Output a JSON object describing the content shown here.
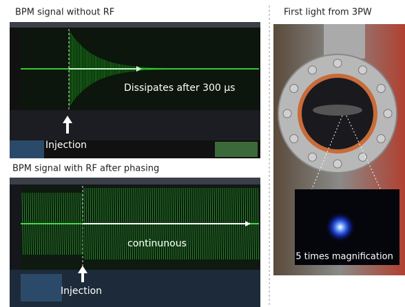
{
  "left_panel": {
    "top": {
      "title": "BPM signal without RF",
      "annotation": "Dissipates after 300 μs",
      "marker_label": "Injection"
    },
    "bottom": {
      "title": "BPM signal with RF after phasing",
      "annotation": "continunous",
      "marker_label": "Injection"
    }
  },
  "right_panel": {
    "title": "First light from 3PW",
    "inset_caption": "5 times magnification"
  }
}
